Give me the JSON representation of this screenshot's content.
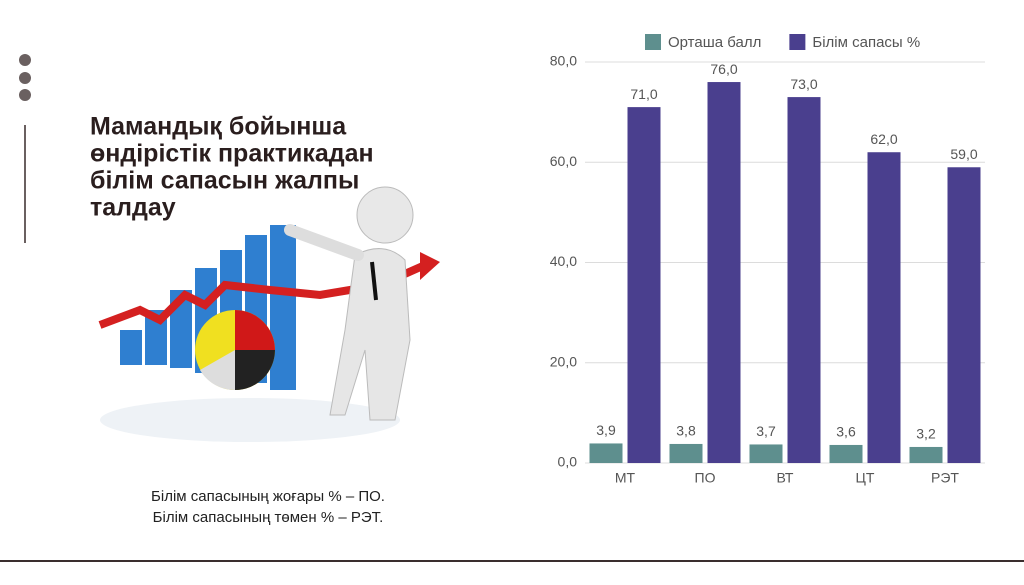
{
  "slide": {
    "title_lines": [
      "Мамандық бойынша",
      "өндірістік практикадан",
      "білім сапасын жалпы",
      "талдау"
    ],
    "notes": [
      "Білім сапасының жоғары % – ПО.",
      "Білім сапасының төмен % – РЭТ."
    ]
  },
  "chart_data": {
    "type": "bar",
    "categories": [
      "МТ",
      "ПО",
      "ВТ",
      "ЦТ",
      "РЭТ"
    ],
    "series": [
      {
        "name": "Орташа балл",
        "color": "#5e8f8e",
        "values": [
          3.9,
          3.8,
          3.7,
          3.6,
          3.2
        ],
        "value_labels": [
          "3,9",
          "3,8",
          "3,7",
          "3,6",
          "3,2"
        ]
      },
      {
        "name": "Білім сапасы %",
        "color": "#4a3f8e",
        "values": [
          71,
          76,
          73,
          62,
          59
        ],
        "value_labels": [
          "71,0",
          "76,0",
          "73,0",
          "62,0",
          "59,0"
        ]
      }
    ],
    "ylim": [
      0,
      80
    ],
    "yticks": [
      {
        "value": 0,
        "label": "0,0"
      },
      {
        "value": 20,
        "label": "20,0"
      },
      {
        "value": 40,
        "label": "40,0"
      },
      {
        "value": 60,
        "label": "60,0"
      },
      {
        "value": 80,
        "label": "80,0"
      }
    ],
    "grid": true,
    "legend": "top"
  }
}
